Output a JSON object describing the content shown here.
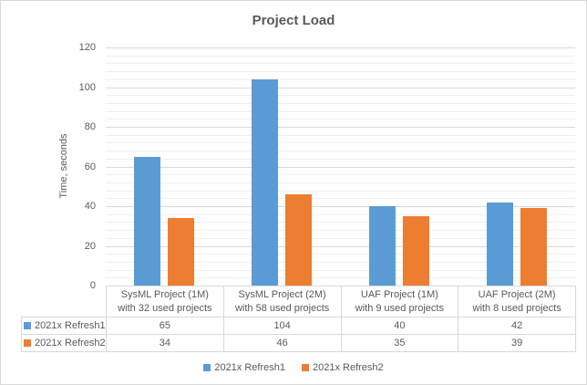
{
  "chart_data": {
    "type": "bar",
    "title": "Project Load",
    "xlabel": "",
    "ylabel": "Time, seconds",
    "ylim": [
      0,
      120
    ],
    "y_major_unit": 20,
    "y_minor_unit": 4,
    "y_ticks": [
      0,
      20,
      40,
      60,
      80,
      100,
      120
    ],
    "grid": "horizontal major and minor gridlines on",
    "legend_position": "bottom",
    "data_table_shown": true,
    "categories": [
      "SysML Project (1M)\nwith 32 used projects",
      "SysML Project (2M)\nwith 58 used projects",
      "UAF Project (1M)\nwith 9 used projects",
      "UAF Project (2M)\nwith 8 used projects"
    ],
    "series": [
      {
        "name": "2021x Refresh1",
        "color": "#5B9BD5",
        "values": [
          65,
          104,
          40,
          42
        ]
      },
      {
        "name": "2021x Refresh2",
        "color": "#ED7D31",
        "values": [
          34,
          46,
          35,
          39
        ]
      }
    ]
  },
  "colors": {
    "series1": "#5B9BD5",
    "series2": "#ED7D31",
    "text": "#595959",
    "grid_major": "#D9D9D9",
    "grid_minor": "#EFEFEF",
    "table_border": "#D9D9D9",
    "background": "#FFFFFF",
    "outer_border": "#D9D9D9"
  },
  "legend": {
    "items": [
      {
        "label": "2021x Refresh1",
        "color": "#5B9BD5"
      },
      {
        "label": "2021x Refresh2",
        "color": "#ED7D31"
      }
    ]
  }
}
